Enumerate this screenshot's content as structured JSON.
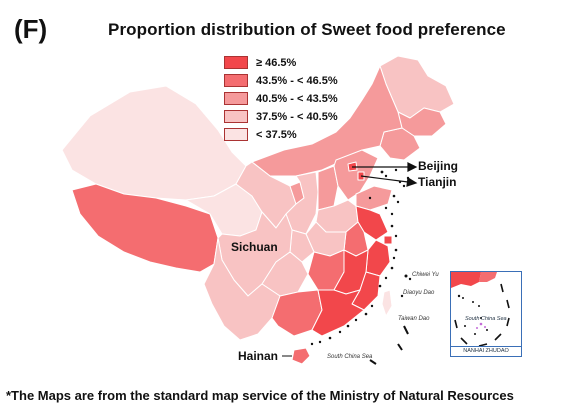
{
  "panel_label": "(F)",
  "title": "Proportion distribution of Sweet food preference",
  "colors": {
    "level1": "#f2474b",
    "level2": "#f46d70",
    "level3": "#f59a9b",
    "level4": "#f8c3c3",
    "level5": "#fbe3e3",
    "outline": "#ffffff",
    "islands": "#111111",
    "inset_border": "#3a6fb7",
    "dash_line": "#111111"
  },
  "legend": {
    "items": [
      {
        "label": "≥ 46.5%",
        "color_key": "level1"
      },
      {
        "label": "43.5% - < 46.5%",
        "color_key": "level2"
      },
      {
        "label": "40.5% - < 43.5%",
        "color_key": "level3"
      },
      {
        "label": "37.5% - < 40.5%",
        "color_key": "level4"
      },
      {
        "label": "< 37.5%",
        "color_key": "level5"
      }
    ]
  },
  "cities": {
    "beijing": "Beijing",
    "tianjin": "Tianjin",
    "sichuan": "Sichuan",
    "hainan": "Hainan"
  },
  "map_labels": {
    "south_china_sea": "South China Sea",
    "taiwan": "Taiwan Dao",
    "diaoyu": "Diaoyu Dao",
    "chiwei": "Chiwei Yu"
  },
  "inset": {
    "sea_label": "South China Sea",
    "footer": "NANHAI ZHUDAO"
  },
  "footnote": "*The Maps are from the standard map service of the Ministry of Natural Resources"
}
